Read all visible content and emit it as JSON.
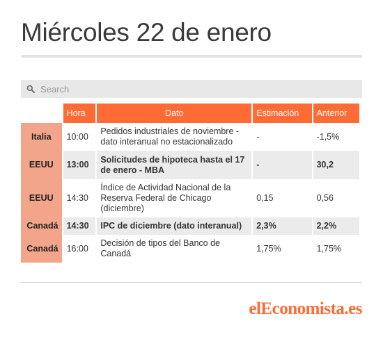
{
  "page": {
    "title": "Miércoles 22 de enero"
  },
  "search": {
    "placeholder": "Search"
  },
  "table": {
    "headers": {
      "hora": "Hora",
      "dato": "Dato",
      "estimacion": "Estimación",
      "anterior": "Anterior"
    },
    "rows": [
      {
        "pais": "Italia",
        "hora": "10:00",
        "dato": "Pedidos industriales de noviembre - dato interanual no estacionalizado",
        "estimacion": "-",
        "anterior": "-1,5%"
      },
      {
        "pais": "EEUU",
        "hora": "13:00",
        "dato": "Solicitudes de hipoteca hasta el 17 de enero - MBA",
        "estimacion": "-",
        "anterior": "30,2"
      },
      {
        "pais": "EEUU",
        "hora": "14:30",
        "dato": "Índice de Actividad Nacional de la Reserva Federal de Chicago (diciembre)",
        "estimacion": "0,15",
        "anterior": "0,56"
      },
      {
        "pais": "Canadá",
        "hora": "14:30",
        "dato": "IPC de diciembre (dato interanual)",
        "estimacion": "2,3%",
        "anterior": "2,2%"
      },
      {
        "pais": "Canadá",
        "hora": "16:00",
        "dato": "Decisión de tipos del Banco de Canadá",
        "estimacion": "1,75%",
        "anterior": "1,75%"
      }
    ]
  },
  "footer": {
    "logo_text": "elEconomista.es"
  },
  "colors": {
    "accent": "#ff6b35",
    "country_bg": "#f2a58a",
    "stripe": "#ebebeb"
  },
  "icons": {
    "search": "search-icon"
  }
}
